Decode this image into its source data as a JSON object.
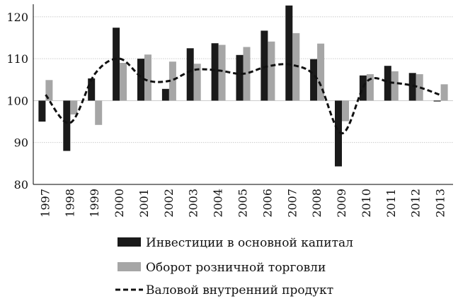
{
  "chart_data": {
    "type": "bar",
    "categories": [
      "1997",
      "1998",
      "1999",
      "2000",
      "2001",
      "2002",
      "2003",
      "2004",
      "2005",
      "2006",
      "2007",
      "2008",
      "2009",
      "2010",
      "2011",
      "2012",
      "2013"
    ],
    "series": [
      {
        "name": "Инвестиции в основной капитал",
        "kind": "bar",
        "color": "#1a1a1a",
        "values": [
          95.0,
          88.0,
          105.3,
          117.4,
          110.0,
          102.8,
          112.5,
          113.7,
          110.9,
          116.7,
          122.7,
          109.9,
          84.3,
          106.0,
          108.3,
          106.6,
          99.8
        ]
      },
      {
        "name": "Оборот розничной торговли",
        "kind": "bar",
        "color": "#a6a6a6",
        "values": [
          104.9,
          96.7,
          94.2,
          109.0,
          111.0,
          109.3,
          108.8,
          113.3,
          112.8,
          114.1,
          116.1,
          113.6,
          95.1,
          106.3,
          107.0,
          106.3,
          103.9
        ]
      },
      {
        "name": "Валовой внутренний продукт",
        "kind": "line",
        "style": "dashed-smooth",
        "color": "#111111",
        "values": [
          101.4,
          94.7,
          106.4,
          110.0,
          105.1,
          104.7,
          107.3,
          107.2,
          106.4,
          108.2,
          108.5,
          105.2,
          92.2,
          104.5,
          104.3,
          103.4,
          101.3
        ]
      }
    ],
    "ylim": [
      80,
      123
    ],
    "yticks": [
      80,
      90,
      100,
      110,
      120
    ],
    "baseline": 100,
    "grid": "horizontal",
    "legend_position": "bottom"
  }
}
